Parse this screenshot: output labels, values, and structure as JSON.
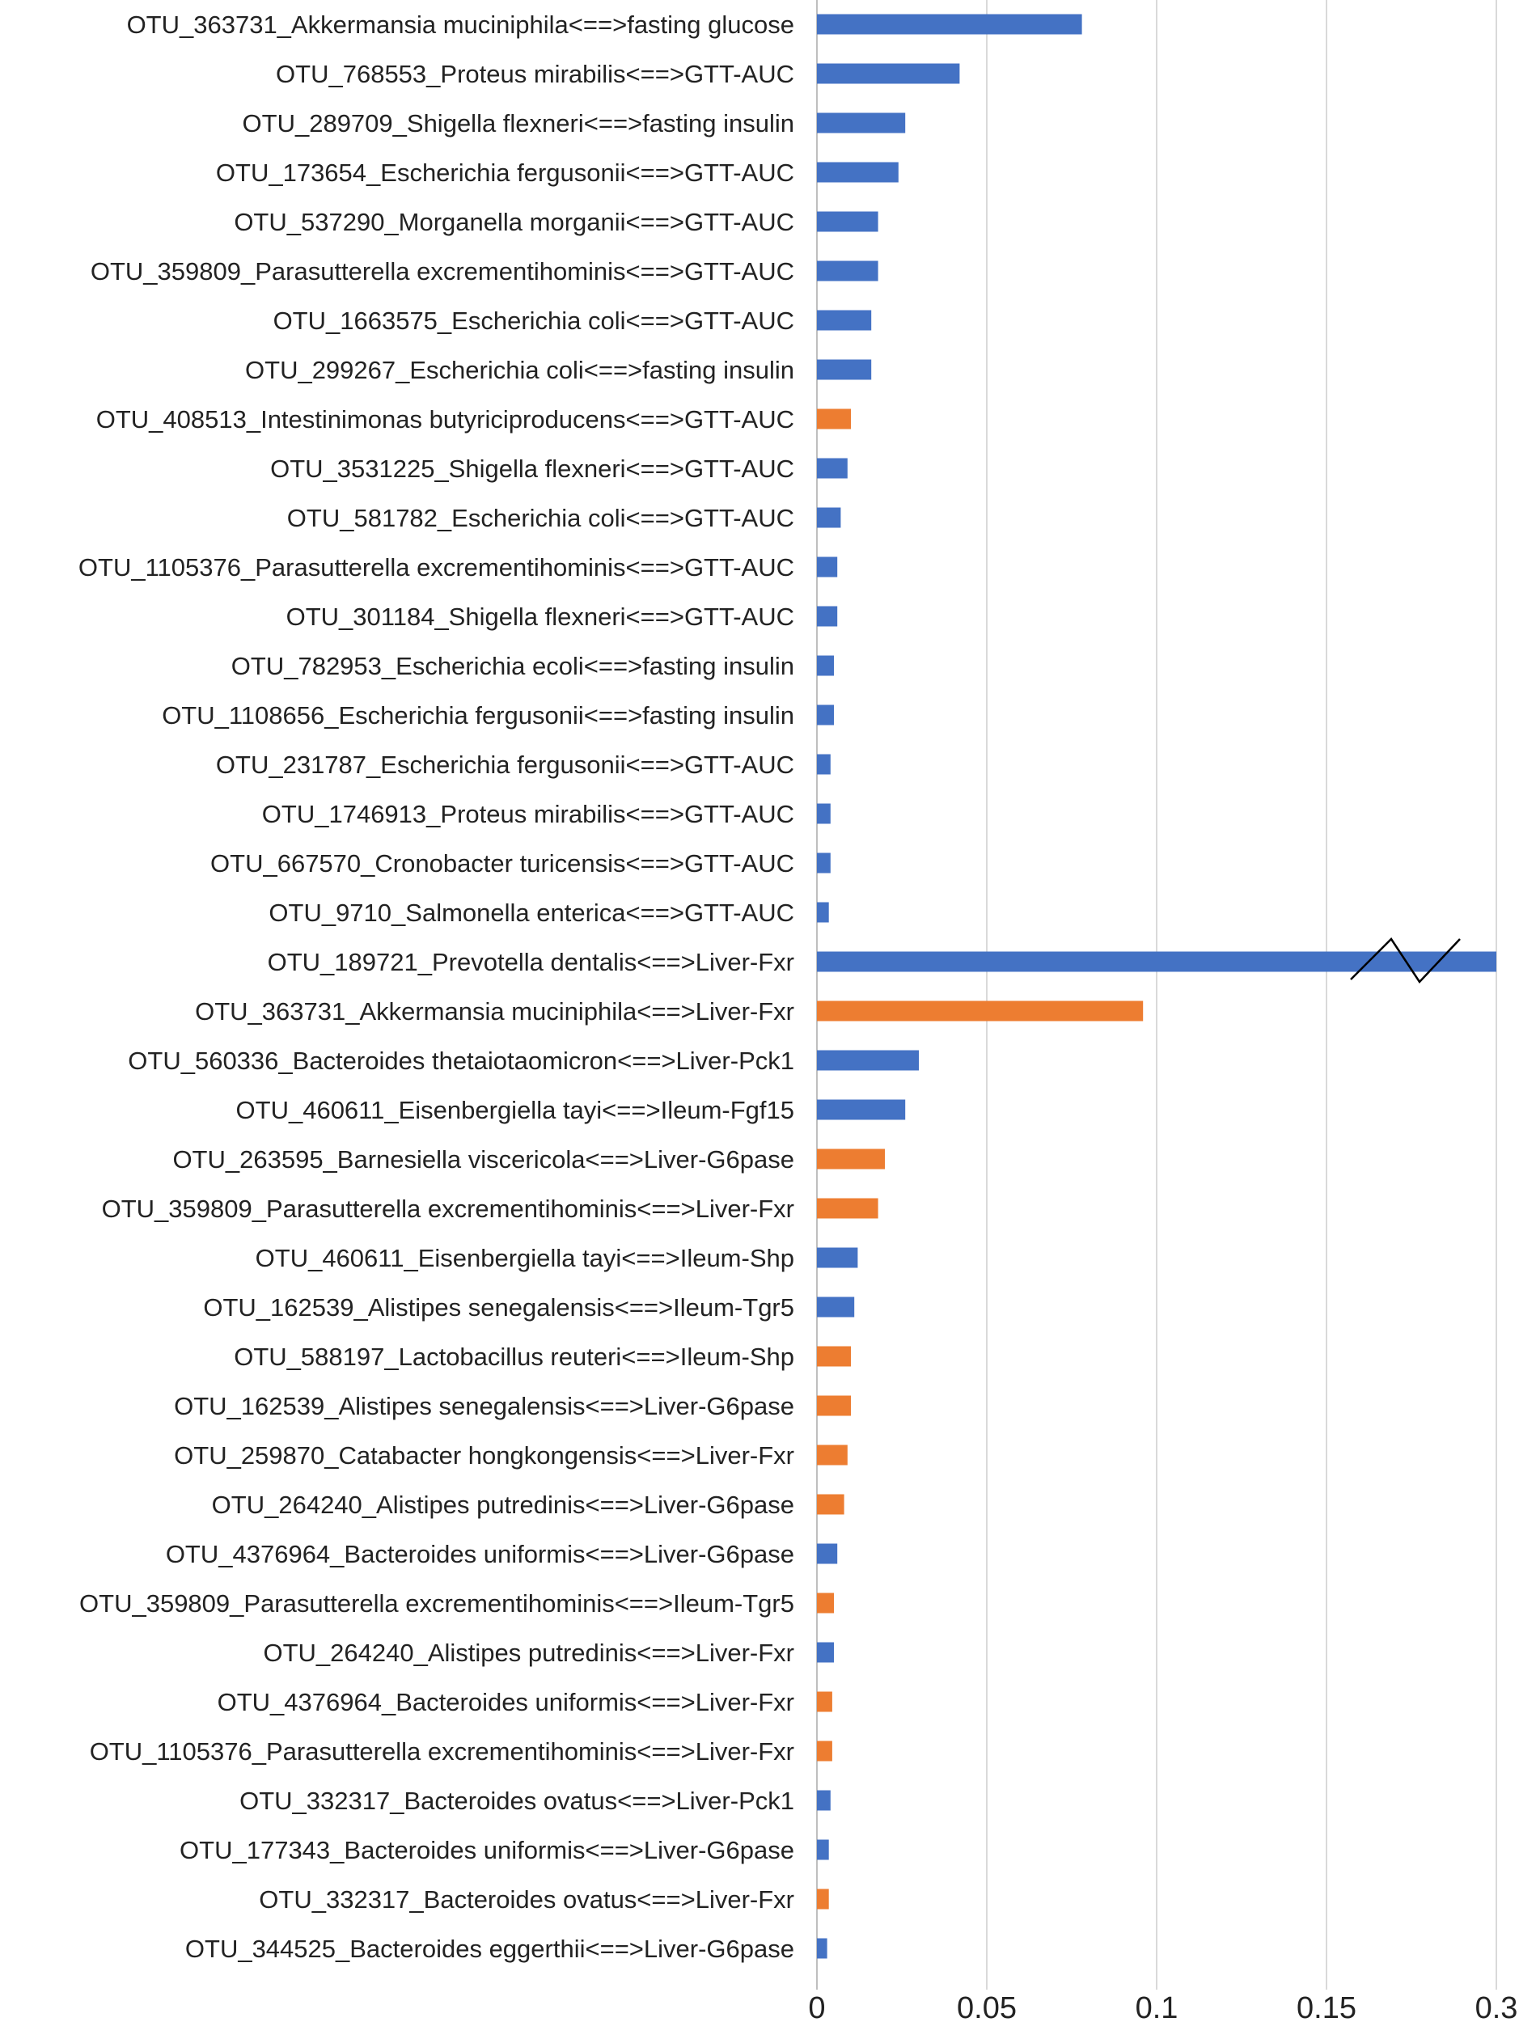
{
  "chart_data": {
    "type": "bar",
    "orientation": "horizontal",
    "xlim": [
      0,
      0.3
    ],
    "x_ticks": [
      "0",
      "0.05",
      "0.1",
      "0.15",
      "0.3"
    ],
    "grid": true,
    "axis_break": "on the longest bar",
    "colors": {
      "blue": "#4472C4",
      "orange": "#ED7D31"
    },
    "categories": [
      "OTU_363731_Akkermansia muciniphila<==>fasting glucose",
      "OTU_768553_Proteus mirabilis<==>GTT-AUC",
      "OTU_289709_Shigella flexneri<==>fasting insulin",
      "OTU_173654_Escherichia fergusonii<==>GTT-AUC",
      "OTU_537290_Morganella morganii<==>GTT-AUC",
      "OTU_359809_Parasutterella excrementihominis<==>GTT-AUC",
      "OTU_1663575_Escherichia coli<==>GTT-AUC",
      "OTU_299267_Escherichia coli<==>fasting insulin",
      "OTU_408513_Intestinimonas butyriciproducens<==>GTT-AUC",
      "OTU_3531225_Shigella flexneri<==>GTT-AUC",
      "OTU_581782_Escherichia coli<==>GTT-AUC",
      "OTU_1105376_Parasutterella excrementihominis<==>GTT-AUC",
      "OTU_301184_Shigella flexneri<==>GTT-AUC",
      "OTU_782953_Escherichia ecoli<==>fasting insulin",
      "OTU_1108656_Escherichia fergusonii<==>fasting insulin",
      "OTU_231787_Escherichia fergusonii<==>GTT-AUC",
      "OTU_1746913_Proteus mirabilis<==>GTT-AUC",
      "OTU_667570_Cronobacter turicensis<==>GTT-AUC",
      "OTU_9710_Salmonella enterica<==>GTT-AUC",
      "OTU_189721_Prevotella dentalis<==>Liver-Fxr",
      "OTU_363731_Akkermansia muciniphila<==>Liver-Fxr",
      "OTU_560336_Bacteroides thetaiotaomicron<==>Liver-Pck1",
      "OTU_460611_Eisenbergiella tayi<==>Ileum-Fgf15",
      "OTU_263595_Barnesiella viscericola<==>Liver-G6pase",
      "OTU_359809_Parasutterella excrementihominis<==>Liver-Fxr",
      "OTU_460611_Eisenbergiella tayi<==>Ileum-Shp",
      "OTU_162539_Alistipes senegalensis<==>Ileum-Tgr5",
      "OTU_588197_Lactobacillus reuteri<==>Ileum-Shp",
      "OTU_162539_Alistipes senegalensis<==>Liver-G6pase",
      "OTU_259870_Catabacter hongkongensis<==>Liver-Fxr",
      "OTU_264240_Alistipes putredinis<==>Liver-G6pase",
      "OTU_4376964_Bacteroides uniformis<==>Liver-G6pase",
      "OTU_359809_Parasutterella excrementihominis<==>Ileum-Tgr5",
      "OTU_264240_Alistipes putredinis<==>Liver-Fxr",
      "OTU_4376964_Bacteroides uniformis<==>Liver-Fxr",
      "OTU_1105376_Parasutterella excrementihominis<==>Liver-Fxr",
      "OTU_332317_Bacteroides ovatus<==>Liver-Pck1",
      "OTU_177343_Bacteroides uniformis<==>Liver-G6pase",
      "OTU_332317_Bacteroides ovatus<==>Liver-Fxr",
      "OTU_344525_Bacteroides eggerthii<==>Liver-G6pase"
    ],
    "values": [
      0.078,
      0.042,
      0.026,
      0.024,
      0.018,
      0.018,
      0.016,
      0.016,
      0.01,
      0.009,
      0.007,
      0.006,
      0.006,
      0.005,
      0.005,
      0.004,
      0.004,
      0.004,
      0.0035,
      0.3,
      0.096,
      0.03,
      0.026,
      0.02,
      0.018,
      0.012,
      0.011,
      0.01,
      0.01,
      0.009,
      0.008,
      0.006,
      0.005,
      0.005,
      0.0045,
      0.0045,
      0.004,
      0.0035,
      0.0035,
      0.003
    ],
    "bar_colors": [
      "blue",
      "blue",
      "blue",
      "blue",
      "blue",
      "blue",
      "blue",
      "blue",
      "orange",
      "blue",
      "blue",
      "blue",
      "blue",
      "blue",
      "blue",
      "blue",
      "blue",
      "blue",
      "blue",
      "blue",
      "orange",
      "blue",
      "blue",
      "orange",
      "orange",
      "blue",
      "blue",
      "orange",
      "orange",
      "orange",
      "orange",
      "blue",
      "orange",
      "blue",
      "orange",
      "orange",
      "blue",
      "blue",
      "orange",
      "blue"
    ]
  }
}
